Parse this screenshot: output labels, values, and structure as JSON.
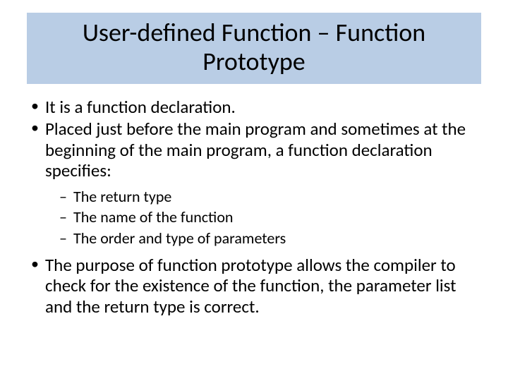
{
  "slide": {
    "title": "User-defined Function – Function Prototype",
    "title_bg": "#b9cde5",
    "title_color": "#000000",
    "title_fontsize": 36,
    "body_fontsize": 25,
    "sub_fontsize": 22,
    "text_color": "#000000",
    "background": "#ffffff",
    "bullets": [
      {
        "text": "It is a function declaration."
      },
      {
        "text": "Placed just before the main program and sometimes at the beginning of the main program, a function declaration specifies:",
        "sub": [
          "The return type",
          "The name of the function",
          "The order and type of parameters"
        ]
      },
      {
        "text": "The purpose of function prototype allows the compiler to check for the existence of the function, the parameter list and the return type is correct."
      }
    ]
  }
}
